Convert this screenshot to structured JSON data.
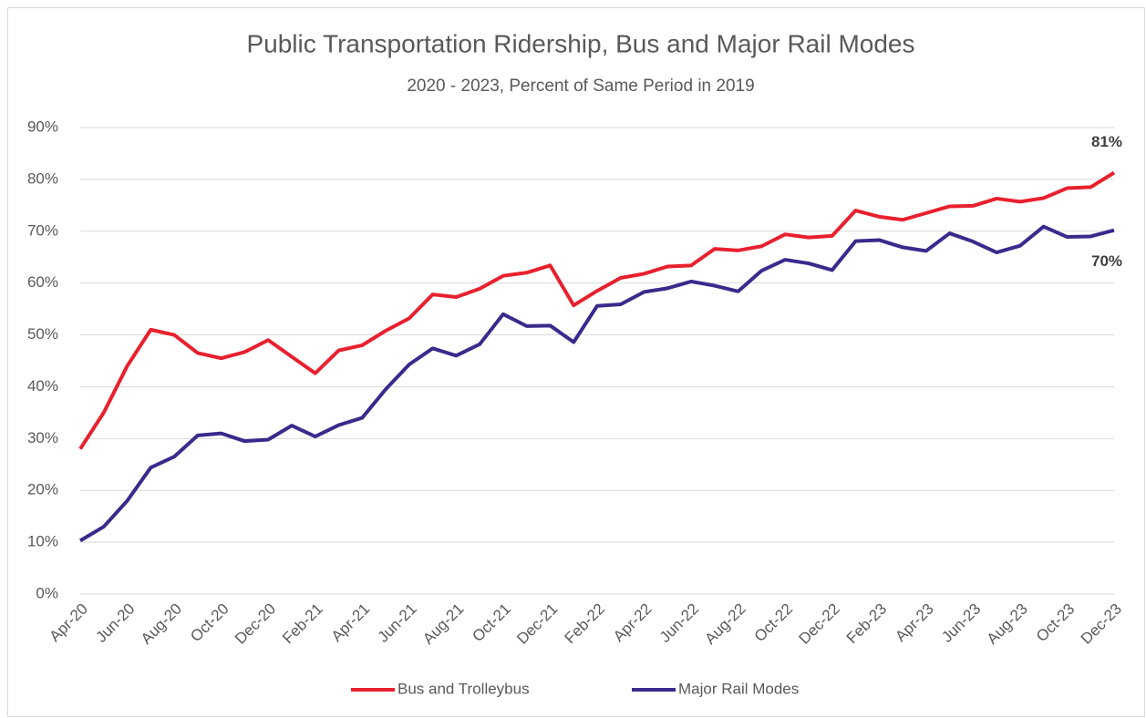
{
  "chart_data": {
    "type": "line",
    "title": "Public Transportation Ridership, Bus and Major Rail Modes",
    "subtitle": "2020 - 2023, Percent of Same Period in 2019",
    "categories": [
      "Apr-20",
      null,
      "Jun-20",
      null,
      "Aug-20",
      null,
      "Oct-20",
      null,
      "Dec-20",
      null,
      "Feb-21",
      null,
      "Apr-21",
      null,
      "Jun-21",
      null,
      "Aug-21",
      null,
      "Oct-21",
      null,
      "Dec-21",
      null,
      "Feb-22",
      null,
      "Apr-22",
      null,
      "Jun-22",
      null,
      "Aug-22",
      null,
      "Oct-22",
      null,
      "Dec-22",
      null,
      "Feb-23",
      null,
      "Apr-23",
      null,
      "Jun-23",
      null,
      "Aug-23",
      null,
      "Oct-23",
      null,
      "Dec-23"
    ],
    "series": [
      {
        "name": "Bus and Trolleybus",
        "color": "#e8202e",
        "values": [
          28,
          35,
          44,
          51,
          50,
          46.5,
          45.5,
          46.7,
          49,
          45.8,
          42.6,
          47,
          48,
          50.8,
          53.2,
          57.8,
          57.3,
          58.9,
          61.4,
          62,
          63.4,
          55.7,
          58.5,
          61,
          61.8,
          63.2,
          63.4,
          66.6,
          66.3,
          67.1,
          69.4,
          68.8,
          69.1,
          74,
          72.8,
          72.2,
          73.5,
          74.8,
          74.9,
          76.3,
          75.7,
          76.4,
          78.3,
          78.5,
          81.3
        ],
        "value_labels": [
          null,
          null,
          null,
          null,
          null,
          null,
          null,
          null,
          null,
          null,
          null,
          null,
          null,
          null,
          null,
          null,
          null,
          null,
          null,
          null,
          null,
          null,
          null,
          null,
          null,
          null,
          null,
          null,
          null,
          null,
          null,
          null,
          null,
          null,
          null,
          null,
          null,
          null,
          null,
          null,
          null,
          null,
          null,
          null,
          "81%"
        ]
      },
      {
        "name": "Major Rail Modes",
        "color": "#3a2a8c",
        "values": [
          10.3,
          13,
          18,
          24.4,
          26.5,
          30.6,
          31,
          29.5,
          29.8,
          32.5,
          30.4,
          32.6,
          34,
          39.5,
          44.3,
          47.4,
          46,
          48.2,
          54,
          51.7,
          51.8,
          48.6,
          55.6,
          55.9,
          58.3,
          59,
          60.3,
          59.5,
          58.4,
          62.4,
          64.5,
          63.8,
          62.5,
          68.1,
          68.3,
          66.9,
          66.2,
          69.6,
          68,
          65.9,
          67.2,
          70.9,
          68.9,
          69,
          70.2
        ],
        "value_labels": [
          null,
          null,
          null,
          null,
          null,
          null,
          null,
          null,
          null,
          null,
          null,
          null,
          null,
          null,
          null,
          null,
          null,
          null,
          null,
          null,
          null,
          null,
          null,
          null,
          null,
          null,
          null,
          null,
          null,
          null,
          null,
          null,
          null,
          null,
          null,
          null,
          null,
          null,
          null,
          null,
          null,
          null,
          null,
          null,
          "70%"
        ]
      }
    ],
    "ylim": [
      0,
      90
    ],
    "yticks": [
      {
        "value": 0,
        "label": "0%"
      },
      {
        "value": 10,
        "label": "10%"
      },
      {
        "value": 20,
        "label": "20%"
      },
      {
        "value": 30,
        "label": "30%"
      },
      {
        "value": 40,
        "label": "40%"
      },
      {
        "value": 50,
        "label": "50%"
      },
      {
        "value": 60,
        "label": "60%"
      },
      {
        "value": 70,
        "label": "70%"
      },
      {
        "value": 80,
        "label": "80%"
      },
      {
        "value": 90,
        "label": "90%"
      }
    ],
    "grid": true,
    "legend": "bottom"
  }
}
